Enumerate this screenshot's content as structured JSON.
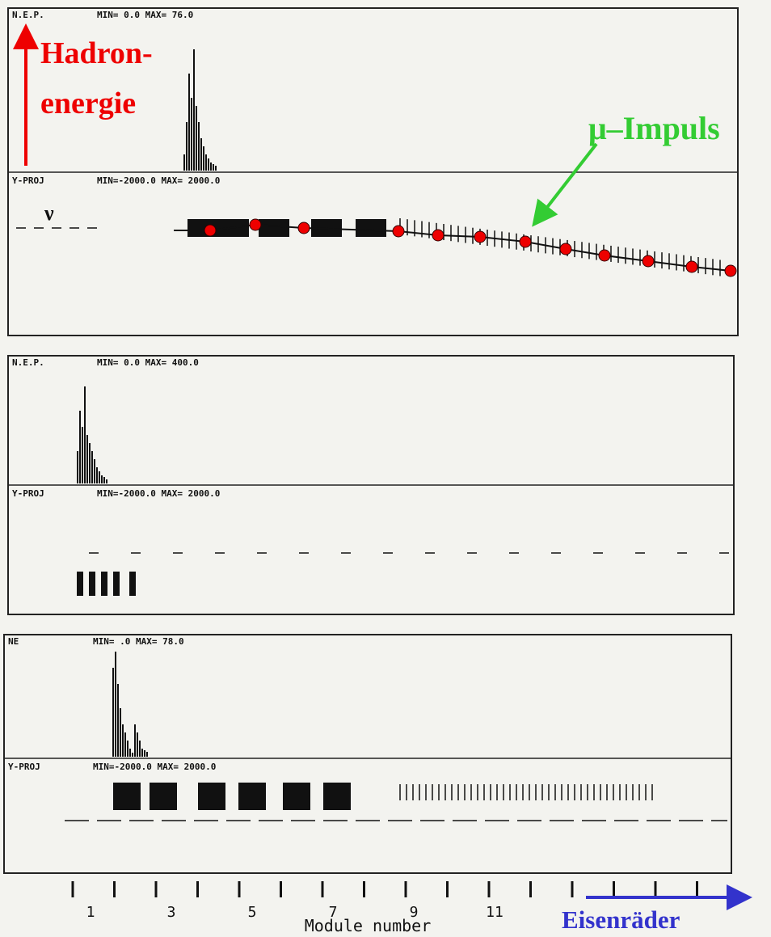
{
  "panels": [
    {
      "energy_label": "N.E.P.",
      "energy_range": "MIN=   0.0 MAX=   76.0",
      "projection_label": "Y-PROJ",
      "projection_range": "MIN=-2000.0 MAX= 2000.0"
    },
    {
      "energy_label": "N.E.P.",
      "energy_range": "MIN=   0.0 MAX=  400.0",
      "projection_label": "Y-PROJ",
      "projection_range": "MIN=-2000.0 MAX= 2000.0"
    },
    {
      "energy_label": "NE",
      "energy_range": "MIN=    .0 MAX=   78.0",
      "projection_label": "Y-PROJ",
      "projection_range": "MIN=-2000.0 MAX= 2000.0"
    }
  ],
  "annotations": {
    "hadron_line1": "Hadron-",
    "hadron_line2": "energie",
    "muon": "μ–Impuls",
    "neutrino": "ν",
    "iron": "Eisenräder"
  },
  "axis": {
    "tick_labels": [
      "1",
      "3",
      "5",
      "7",
      "9",
      "11"
    ],
    "title": "Module number"
  }
}
